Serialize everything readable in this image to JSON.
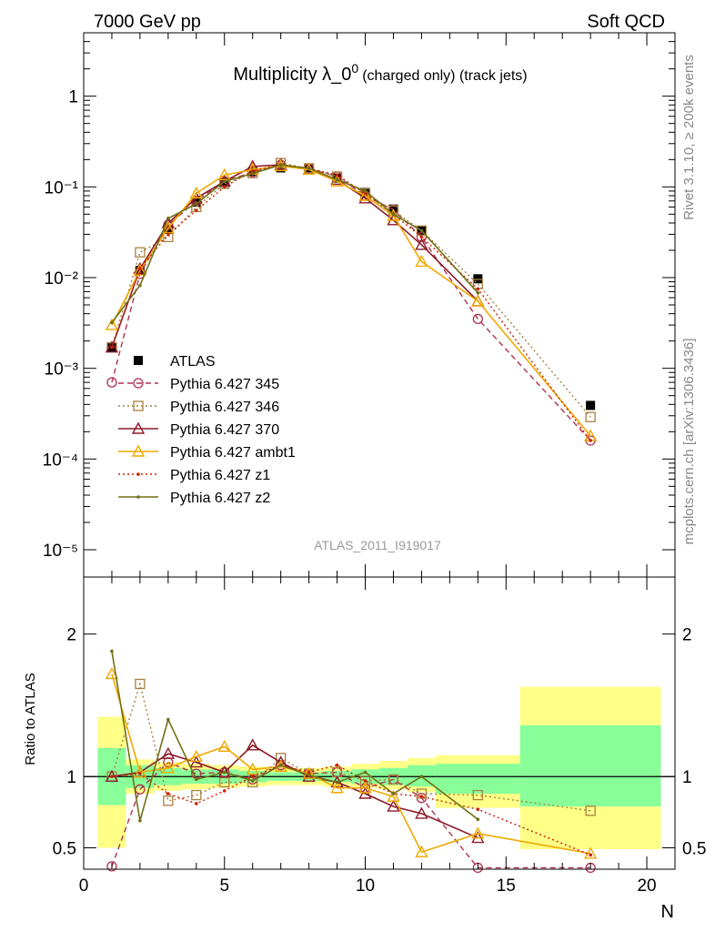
{
  "header": {
    "left": "7000 GeV pp",
    "right": "Soft QCD"
  },
  "title": {
    "main": "Multiplicity λ_0",
    "sup": "0",
    "sub": "(charged only) (track jets)"
  },
  "watermark": "ATLAS_2011_I919017",
  "side_text": {
    "rivet": "Rivet 3.1.10, ≥ 200k events",
    "mcplots": "mcplots.cern.ch [arXiv:1306.3436]"
  },
  "xlabel": "N",
  "ratio_ylabel": "Ratio to ATLAS",
  "colors": {
    "data": "#000000",
    "p345": "#b03050",
    "p346": "#a88040",
    "p370": "#8b1a2a",
    "ambt1": "#f0a800",
    "z1": "#cc2200",
    "z2": "#707015",
    "band_yellow": "#ffff88",
    "band_green": "#88ff99"
  },
  "chart_data": [
    {
      "type": "line",
      "yscale": "log",
      "xlim": [
        0,
        21
      ],
      "ylim": [
        5e-06,
        5
      ],
      "x_ticks": [
        "0",
        "5",
        "10",
        "15",
        "20"
      ],
      "y_ticks": [
        "10⁻⁵",
        "10⁻⁴",
        "10⁻³",
        "10⁻²",
        "10⁻¹",
        "1"
      ],
      "legend_position": "lower-left",
      "series": [
        {
          "name": "ATLAS",
          "style": "data",
          "x": [
            1,
            2,
            3,
            4,
            5,
            6,
            7,
            8,
            9,
            10,
            11,
            12,
            14,
            18
          ],
          "y": [
            0.0017,
            0.012,
            0.034,
            0.068,
            0.112,
            0.148,
            0.162,
            0.158,
            0.125,
            0.087,
            0.057,
            0.033,
            0.0097,
            0.00039
          ]
        },
        {
          "name": "Pythia 6.427 345",
          "style": "p345",
          "x": [
            1,
            2,
            3,
            4,
            5,
            6,
            7,
            8,
            9,
            10,
            11,
            12,
            14,
            18
          ],
          "y": [
            0.0007,
            0.011,
            0.038,
            0.07,
            0.115,
            0.145,
            0.175,
            0.16,
            0.13,
            0.08,
            0.056,
            0.028,
            0.0035,
            0.00016
          ]
        },
        {
          "name": "Pythia 6.427 346",
          "style": "p346",
          "x": [
            1,
            2,
            3,
            4,
            5,
            6,
            7,
            8,
            9,
            10,
            11,
            12,
            14,
            18
          ],
          "y": [
            0.0017,
            0.019,
            0.028,
            0.06,
            0.108,
            0.142,
            0.183,
            0.16,
            0.13,
            0.085,
            0.055,
            0.033,
            0.0085,
            0.00029
          ]
        },
        {
          "name": "Pythia 6.427 370",
          "style": "p370",
          "x": [
            1,
            2,
            3,
            4,
            5,
            6,
            7,
            8,
            9,
            10,
            11,
            12,
            14
          ],
          "y": [
            0.0017,
            0.0125,
            0.04,
            0.075,
            0.115,
            0.168,
            0.175,
            0.155,
            0.12,
            0.075,
            0.043,
            0.023,
            0.0055
          ]
        },
        {
          "name": "Pythia 6.427 ambt1",
          "style": "ambt1",
          "x": [
            1,
            2,
            3,
            4,
            5,
            6,
            7,
            8,
            9,
            10,
            11,
            12,
            14,
            18
          ],
          "y": [
            0.003,
            0.012,
            0.035,
            0.085,
            0.135,
            0.155,
            0.17,
            0.155,
            0.115,
            0.08,
            0.048,
            0.015,
            0.0055,
            0.00018
          ]
        },
        {
          "name": "Pythia 6.427 z1",
          "style": "z1",
          "x": [
            1,
            2,
            3,
            4,
            5,
            6,
            7,
            8,
            9,
            10,
            11,
            12,
            14,
            18
          ],
          "y": [
            0.0017,
            0.0125,
            0.03,
            0.055,
            0.1,
            0.15,
            0.175,
            0.16,
            0.135,
            0.085,
            0.05,
            0.028,
            0.0075,
            0.00016
          ]
        },
        {
          "name": "Pythia 6.427 z2",
          "style": "z2",
          "x": [
            1,
            2,
            3,
            4,
            5,
            6,
            7,
            8,
            9,
            10,
            11,
            12,
            14
          ],
          "y": [
            0.0032,
            0.0082,
            0.045,
            0.065,
            0.115,
            0.14,
            0.175,
            0.16,
            0.12,
            0.09,
            0.05,
            0.033,
            0.0068
          ]
        }
      ]
    },
    {
      "type": "line",
      "xlim": [
        0,
        21
      ],
      "ylim": [
        0.35,
        2.4
      ],
      "y_ticks": [
        "0.5",
        "1",
        "2"
      ],
      "reference_line": 1,
      "bands": [
        {
          "x0": 0.5,
          "x1": 1.5,
          "y_lo": 0.5,
          "y_hi": 1.42,
          "g_lo": 0.8,
          "g_hi": 1.2
        },
        {
          "x0": 1.5,
          "x1": 2.5,
          "y_lo": 0.88,
          "y_hi": 1.12,
          "g_lo": 0.92,
          "g_hi": 1.08
        },
        {
          "x0": 2.5,
          "x1": 3.5,
          "y_lo": 0.9,
          "y_hi": 1.1,
          "g_lo": 0.94,
          "g_hi": 1.06
        },
        {
          "x0": 3.5,
          "x1": 4.5,
          "y_lo": 0.91,
          "y_hi": 1.09,
          "g_lo": 0.95,
          "g_hi": 1.05
        },
        {
          "x0": 4.5,
          "x1": 5.5,
          "y_lo": 0.92,
          "y_hi": 1.08,
          "g_lo": 0.95,
          "g_hi": 1.05
        },
        {
          "x0": 5.5,
          "x1": 6.5,
          "y_lo": 0.93,
          "y_hi": 1.07,
          "g_lo": 0.96,
          "g_hi": 1.04
        },
        {
          "x0": 6.5,
          "x1": 7.5,
          "y_lo": 0.94,
          "y_hi": 1.06,
          "g_lo": 0.97,
          "g_hi": 1.03
        },
        {
          "x0": 7.5,
          "x1": 8.5,
          "y_lo": 0.94,
          "y_hi": 1.06,
          "g_lo": 0.97,
          "g_hi": 1.03
        },
        {
          "x0": 8.5,
          "x1": 9.5,
          "y_lo": 0.93,
          "y_hi": 1.07,
          "g_lo": 0.96,
          "g_hi": 1.04
        },
        {
          "x0": 9.5,
          "x1": 10.5,
          "y_lo": 0.92,
          "y_hi": 1.09,
          "g_lo": 0.95,
          "g_hi": 1.05
        },
        {
          "x0": 10.5,
          "x1": 11.5,
          "y_lo": 0.91,
          "y_hi": 1.11,
          "g_lo": 0.94,
          "g_hi": 1.06
        },
        {
          "x0": 11.5,
          "x1": 12.5,
          "y_lo": 0.89,
          "y_hi": 1.13,
          "g_lo": 0.93,
          "g_hi": 1.08
        },
        {
          "x0": 12.5,
          "x1": 15.5,
          "y_lo": 0.78,
          "y_hi": 1.15,
          "g_lo": 0.88,
          "g_hi": 1.09
        },
        {
          "x0": 15.5,
          "x1": 20.5,
          "y_lo": 0.49,
          "y_hi": 1.63,
          "g_lo": 0.79,
          "g_hi": 1.36
        }
      ],
      "series": [
        {
          "name": "Pythia 6.427 345",
          "style": "p345",
          "x": [
            1,
            2,
            3,
            4,
            5,
            6,
            7,
            8,
            9,
            10,
            11,
            12,
            14,
            18
          ],
          "y": [
            0.37,
            0.91,
            1.1,
            1.02,
            1.03,
            0.98,
            1.08,
            1.02,
            1.03,
            0.92,
            0.98,
            0.85,
            0.36,
            0.36
          ]
        },
        {
          "name": "Pythia 6.427 346",
          "style": "p346",
          "x": [
            1,
            2,
            3,
            4,
            5,
            6,
            7,
            8,
            9,
            10,
            11,
            12,
            14,
            18
          ],
          "y": [
            1.0,
            1.65,
            0.83,
            0.87,
            0.96,
            0.96,
            1.13,
            1.02,
            1.03,
            0.97,
            0.98,
            0.88,
            0.87,
            0.76
          ]
        },
        {
          "name": "Pythia 6.427 370",
          "style": "p370",
          "x": [
            1,
            2,
            3,
            4,
            5,
            6,
            7,
            8,
            9,
            10,
            11,
            12,
            14
          ],
          "y": [
            1.0,
            1.03,
            1.16,
            1.1,
            1.03,
            1.22,
            1.1,
            1.0,
            0.96,
            0.88,
            0.79,
            0.74,
            0.57
          ]
        },
        {
          "name": "Pythia 6.427 ambt1",
          "style": "ambt1",
          "x": [
            1,
            2,
            3,
            4,
            5,
            6,
            7,
            8,
            9,
            10,
            11,
            12,
            14,
            18
          ],
          "y": [
            1.72,
            1.03,
            1.06,
            1.14,
            1.21,
            1.05,
            1.07,
            1.02,
            0.92,
            0.92,
            0.86,
            0.47,
            0.6,
            0.46
          ]
        },
        {
          "name": "Pythia 6.427 z1",
          "style": "z1",
          "x": [
            1,
            2,
            3,
            4,
            5,
            6,
            7,
            8,
            9,
            10,
            11,
            12,
            14,
            18
          ],
          "y": [
            1.0,
            1.02,
            0.88,
            0.81,
            0.9,
            1.0,
            1.08,
            1.03,
            1.08,
            0.97,
            0.88,
            0.86,
            0.77,
            0.45
          ]
        },
        {
          "name": "Pythia 6.427 z2",
          "style": "z2",
          "x": [
            1,
            2,
            3,
            4,
            5,
            6,
            7,
            8,
            9,
            10,
            11,
            12,
            14
          ],
          "y": [
            1.88,
            0.69,
            1.4,
            0.98,
            1.03,
            0.97,
            1.08,
            1.01,
            0.96,
            1.03,
            0.88,
            1.0,
            0.7
          ]
        }
      ]
    }
  ]
}
